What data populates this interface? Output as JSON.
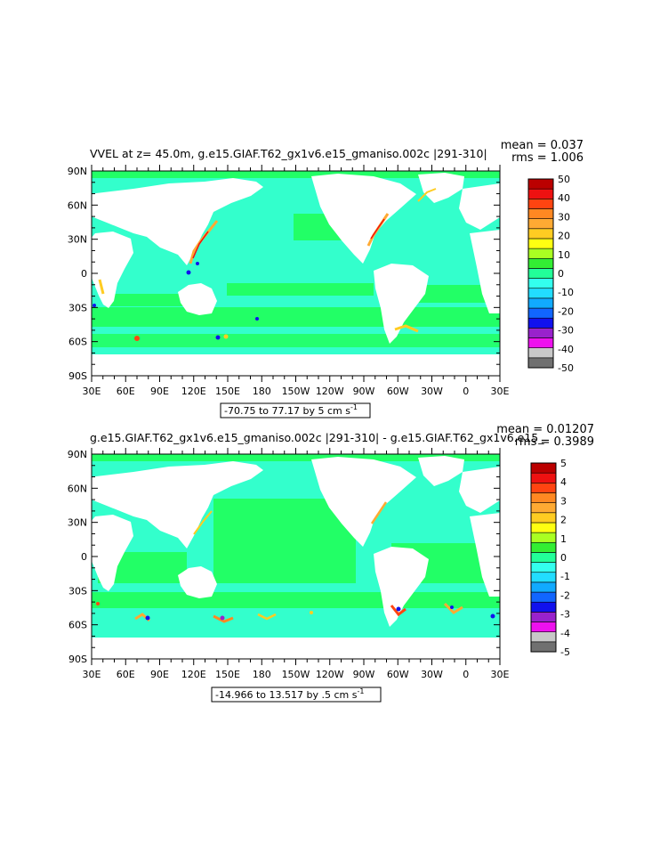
{
  "colors": {
    "ocean_light": "#33ffcc",
    "ocean_mid": "#22ff66",
    "land": "#ffffff",
    "frame": "#000000"
  },
  "panels": [
    {
      "title": "VVEL at z=  45.0m, g.e15.GIAF.T62_gx1v6.e15_gmaniso.002c |291-310|",
      "stat_mean": "mean = 0.037",
      "stat_rms": "rms = 1.006",
      "range_text": "-70.75 to 77.17 by 5 cm s",
      "range_sup": "-1",
      "colorbar": {
        "colors": [
          "#707070",
          "#c8c8c8",
          "#ee11ee",
          "#9922cc",
          "#1111ee",
          "#1166ff",
          "#11aaff",
          "#22ddff",
          "#33ffee",
          "#22ff99",
          "#33ee33",
          "#aaff22",
          "#ffff11",
          "#ffcc22",
          "#ffaa33",
          "#ff8822",
          "#ff4411",
          "#ee1111",
          "#bb0000"
        ],
        "labels": [
          "-50",
          "-40",
          "-30",
          "-20",
          "-10",
          "0",
          "10",
          "20",
          "30",
          "40",
          "50"
        ]
      }
    },
    {
      "title": "g.e15.GIAF.T62_gx1v6.e15_gmaniso.002c |291-310| - g.e15.GIAF.T62_gx1v6.e15_",
      "stat_mean": "mean = 0.01207",
      "stat_rms": "rms = 0.3989",
      "range_text": "-14.966 to 13.517 by .5 cm s",
      "range_sup": "-1",
      "colorbar": {
        "colors": [
          "#707070",
          "#c8c8c8",
          "#ee11ee",
          "#9922cc",
          "#1111ee",
          "#1166ff",
          "#11aaff",
          "#22ddff",
          "#33ffee",
          "#22ff99",
          "#33ee33",
          "#aaff22",
          "#ffff11",
          "#ffcc22",
          "#ffaa33",
          "#ff8822",
          "#ff4411",
          "#ee1111",
          "#bb0000"
        ],
        "labels": [
          "-5",
          "-4",
          "-3",
          "-2",
          "-1",
          "0",
          "1",
          "2",
          "3",
          "4",
          "5"
        ]
      }
    }
  ],
  "axes": {
    "lat_labels": [
      "90N",
      "60N",
      "30N",
      "0",
      "30S",
      "60S",
      "90S"
    ],
    "lon_labels": [
      "30E",
      "60E",
      "90E",
      "120E",
      "150E",
      "180",
      "150W",
      "120W",
      "90W",
      "60W",
      "30W",
      "0",
      "30E"
    ]
  }
}
